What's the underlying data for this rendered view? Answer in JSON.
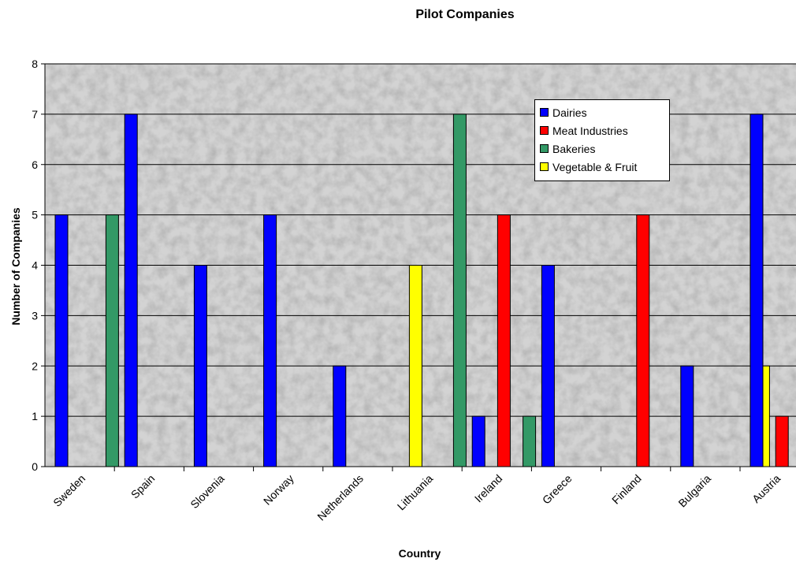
{
  "chart_data": {
    "type": "bar",
    "title": "Pilot Companies",
    "xlabel": "Country",
    "ylabel": "Number of Companies",
    "categories": [
      "Sweden",
      "Spain",
      "Slovenia",
      "Norway",
      "Netherlands",
      "Lithuania",
      "Ireland",
      "Greece",
      "Finland",
      "Bulgaria",
      "Austria"
    ],
    "series": [
      {
        "name": "Dairies",
        "color": "#0000ff",
        "values": [
          5,
          7,
          4,
          5,
          2,
          0,
          1,
          4,
          0,
          2,
          7
        ]
      },
      {
        "name": "Meat Industries",
        "color": "#ff0000",
        "values": [
          0,
          0,
          0,
          0,
          0,
          0,
          5,
          0,
          5,
          0,
          1
        ]
      },
      {
        "name": "Bakeries",
        "color": "#339966",
        "values": [
          5,
          0,
          0,
          0,
          0,
          7,
          1,
          0,
          0,
          0,
          0
        ]
      },
      {
        "name": "Vegetable & Fruit",
        "color": "#ffff00",
        "values": [
          0,
          0,
          0,
          0,
          4,
          0,
          0,
          0,
          0,
          2,
          0
        ]
      }
    ],
    "ylim": [
      0,
      8
    ],
    "yticks": [
      0,
      1,
      2,
      3,
      4,
      5,
      6,
      7,
      8
    ],
    "grid": true,
    "legend_position": "top-right",
    "plot_background": "gray-texture"
  }
}
